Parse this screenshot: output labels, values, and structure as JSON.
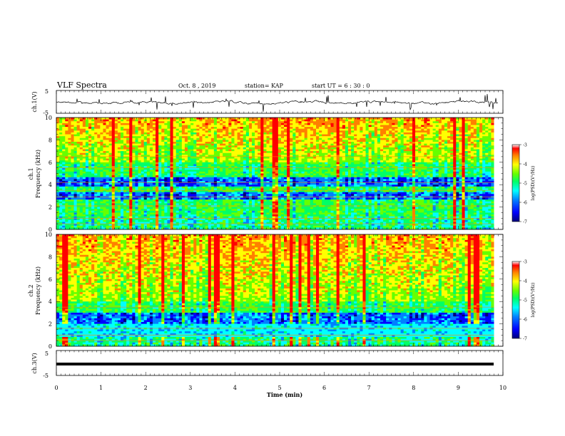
{
  "header": {
    "title": "VLF Spectra",
    "date": "Oct. 8  , 2019",
    "station": "station= KAP",
    "start_ut": "start  UT  =   6  : 30 : 0"
  },
  "chart_data": [
    {
      "type": "line",
      "panel": "ch.1 waveform",
      "ylabel": "ch.1(V)",
      "ylim": [
        -5,
        5
      ],
      "yticks": [
        "5",
        "-5"
      ],
      "xlim": [
        0,
        10
      ],
      "series_color": "#000000",
      "baseline_level": 0,
      "description_values": {
        "mean_offset_V": 0,
        "amplitude_V": 1.5,
        "spike_peaks_V": 5
      }
    },
    {
      "type": "heatmap",
      "panel": "ch.1 spectrogram",
      "ylabel": "ch.1\nFrequency  (kHz)",
      "ylim": [
        0,
        10
      ],
      "yticks": [
        "0",
        "2",
        "4",
        "6",
        "8",
        "10"
      ],
      "xlim": [
        0,
        9.8
      ],
      "colorbar": {
        "label": "log(PSD)(V²/Hz)",
        "range": [
          -7,
          -3
        ],
        "ticks": [
          "-3",
          "-4",
          "-5",
          "-6",
          "-7"
        ]
      },
      "dominant_bands_kHz": [
        0.5,
        1.0,
        2.1,
        2.9,
        3.5,
        4.2,
        5.5,
        6.5
      ],
      "low_power_bands_kHz": [
        [
          2.6,
          3.3
        ],
        [
          3.9,
          4.7
        ]
      ],
      "high_power_region_kHz": [
        6,
        10
      ]
    },
    {
      "type": "heatmap",
      "panel": "ch.2 spectrogram",
      "ylabel": "ch.2\nFrequency  (kHz)",
      "ylim": [
        0,
        10
      ],
      "yticks": [
        "0",
        "2",
        "4",
        "6",
        "8",
        "10"
      ],
      "xlim": [
        0,
        9.8
      ],
      "colorbar": {
        "label": "log(PSD)(V²/Hz)",
        "range": [
          -7,
          -3
        ],
        "ticks": [
          "-3",
          "-4",
          "-5",
          "-6",
          "-7"
        ]
      },
      "dominant_bands_kHz": [
        0.5,
        1.0,
        1.6,
        3.5
      ],
      "low_power_bands_kHz": [
        [
          2.0,
          3.0
        ],
        [
          0.9,
          1.5
        ]
      ],
      "high_power_region_kHz": [
        4,
        10
      ]
    },
    {
      "type": "line",
      "panel": "ch.3 waveform",
      "ylabel": "ch.3(V)",
      "ylim": [
        -5,
        5
      ],
      "yticks": [
        "5",
        "-5"
      ],
      "xlim": [
        0,
        10
      ],
      "series_color": "#000000",
      "constant_value_V": 0
    }
  ],
  "xaxis": {
    "label": "Time  (min)",
    "range": [
      0,
      10
    ],
    "ticks": [
      "0",
      "1",
      "2",
      "3",
      "4",
      "5",
      "6",
      "7",
      "8",
      "9",
      "10"
    ]
  },
  "colormap": [
    "#00007a",
    "#0000ff",
    "#0080ff",
    "#00ffff",
    "#00ff66",
    "#66ff00",
    "#ffff00",
    "#ff8000",
    "#ff0000",
    "#e6e6e6"
  ]
}
